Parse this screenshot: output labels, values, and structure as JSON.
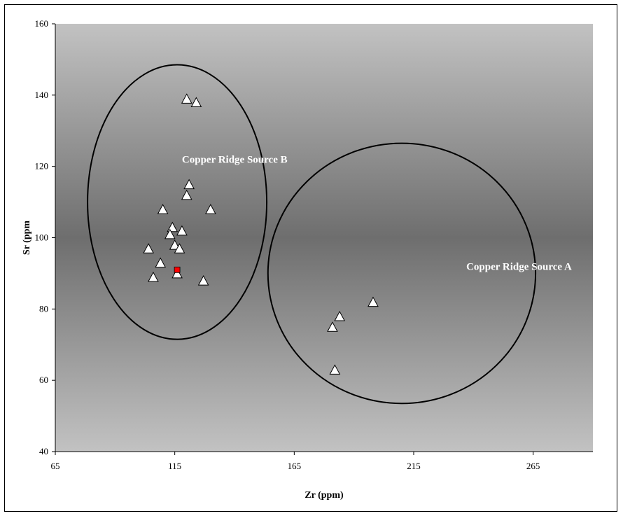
{
  "chart_data": {
    "type": "scatter",
    "xlabel": "Zr (ppm)",
    "ylabel": "Sr (ppm",
    "xlim": [
      65,
      290
    ],
    "ylim": [
      40,
      160
    ],
    "xticks": [
      65,
      115,
      165,
      215,
      265
    ],
    "yticks": [
      40,
      60,
      80,
      100,
      120,
      140,
      160
    ],
    "grid": false,
    "background": "vertical gradient gray",
    "colors": {
      "bg_light": "#c2c2c2",
      "bg_dark": "#6e6e6e",
      "marker_fill": "#ffffff",
      "highlight": "#ff0000"
    },
    "series": [
      {
        "marker": "triangle",
        "points": [
          {
            "x": 120,
            "y": 139
          },
          {
            "x": 124,
            "y": 138
          },
          {
            "x": 121,
            "y": 115
          },
          {
            "x": 120,
            "y": 112
          },
          {
            "x": 110,
            "y": 108
          },
          {
            "x": 130,
            "y": 108
          },
          {
            "x": 114,
            "y": 103
          },
          {
            "x": 118,
            "y": 102
          },
          {
            "x": 113,
            "y": 101
          },
          {
            "x": 115,
            "y": 98
          },
          {
            "x": 104,
            "y": 97
          },
          {
            "x": 117,
            "y": 97
          },
          {
            "x": 109,
            "y": 93
          },
          {
            "x": 116,
            "y": 90
          },
          {
            "x": 106,
            "y": 89
          },
          {
            "x": 127,
            "y": 88
          },
          {
            "x": 198,
            "y": 82
          },
          {
            "x": 184,
            "y": 78
          },
          {
            "x": 181,
            "y": 75
          },
          {
            "x": 182,
            "y": 63
          }
        ]
      },
      {
        "marker": "square",
        "points": [
          {
            "x": 116,
            "y": 91
          }
        ]
      }
    ],
    "annotations": [
      {
        "shape": "ellipse",
        "label": "Copper Ridge Source B",
        "center": {
          "x": 116,
          "y": 110
        },
        "radius": {
          "x": 37.5,
          "y": 38.5
        },
        "label_anchor": {
          "x": 118,
          "y": 121
        }
      },
      {
        "shape": "ellipse",
        "label": "Copper Ridge Source A",
        "center": {
          "x": 210,
          "y": 90
        },
        "radius": {
          "x": 56,
          "y": 36.5
        },
        "label_anchor": {
          "x": 237,
          "y": 91
        }
      }
    ]
  }
}
